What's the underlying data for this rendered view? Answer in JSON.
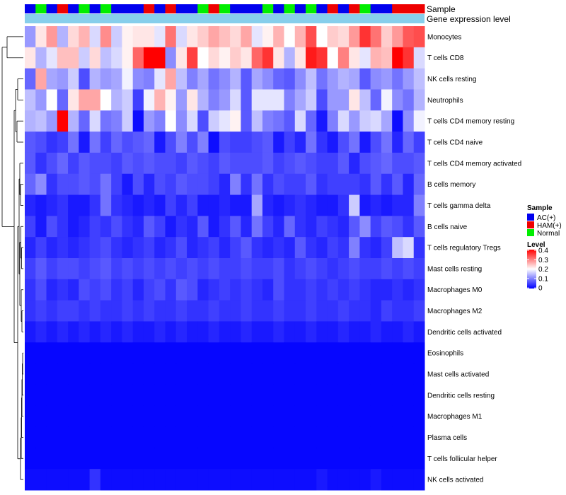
{
  "chart_data": {
    "type": "heatmap",
    "annotation_labels": [
      "Sample",
      "Gene expression level"
    ],
    "rows": [
      "Monocytes",
      "T cells CD8",
      "NK cells resting",
      "Neutrophils",
      "T cells CD4 memory resting",
      "T cells CD4 naive",
      "T cells CD4 memory activated",
      "B cells memory",
      "T cells gamma delta",
      "B cells naive",
      "T cells regulatory  Tregs",
      "Mast cells resting",
      "Macrophages M0",
      "Macrophages M2",
      "Dendritic cells activated",
      "Eosinophils",
      "Mast cells activated",
      "Dendritic cells resting",
      "Macrophages M1",
      "Plasma cells",
      "T cells follicular helper",
      "NK cells activated"
    ],
    "n_columns": 37,
    "sample_groups": [
      "AC(+)",
      "Normal",
      "AC(+)",
      "HAM(+)",
      "AC(+)",
      "Normal",
      "AC(+)",
      "Normal",
      "AC(+)",
      "AC(+)",
      "AC(+)",
      "HAM(+)",
      "AC(+)",
      "HAM(+)",
      "AC(+)",
      "AC(+)",
      "Normal",
      "HAM(+)",
      "Normal",
      "AC(+)",
      "AC(+)",
      "AC(+)",
      "Normal",
      "AC(+)",
      "Normal",
      "AC(+)",
      "Normal",
      "AC(+)",
      "HAM(+)",
      "AC(+)",
      "HAM(+)",
      "Normal",
      "AC(+)",
      "AC(+)",
      "HAM(+)",
      "HAM(+)",
      "HAM(+)"
    ],
    "values": [
      [
        0.12,
        0.22,
        0.28,
        0.14,
        0.23,
        0.26,
        0.17,
        0.29,
        0.16,
        0.21,
        0.22,
        0.22,
        0.18,
        0.31,
        0.17,
        0.22,
        0.24,
        0.27,
        0.25,
        0.23,
        0.27,
        0.18,
        0.21,
        0.26,
        0.2,
        0.26,
        0.34,
        0.2,
        0.24,
        0.23,
        0.28,
        0.36,
        0.31,
        0.24,
        0.28,
        0.33,
        0.34
      ],
      [
        0.22,
        0.14,
        0.18,
        0.25,
        0.25,
        0.16,
        0.23,
        0.15,
        0.17,
        0.21,
        0.32,
        0.4,
        0.4,
        0.11,
        0.22,
        0.35,
        0.2,
        0.23,
        0.21,
        0.24,
        0.22,
        0.32,
        0.36,
        0.22,
        0.14,
        0.22,
        0.38,
        0.36,
        0.2,
        0.3,
        0.22,
        0.18,
        0.26,
        0.25,
        0.4,
        0.36,
        0.17
      ],
      [
        0.08,
        0.27,
        0.13,
        0.12,
        0.16,
        0.06,
        0.14,
        0.12,
        0.13,
        0.19,
        0.11,
        0.1,
        0.18,
        0.27,
        0.15,
        0.1,
        0.13,
        0.09,
        0.11,
        0.14,
        0.07,
        0.13,
        0.11,
        0.08,
        0.07,
        0.11,
        0.15,
        0.09,
        0.12,
        0.14,
        0.13,
        0.07,
        0.11,
        0.12,
        0.09,
        0.12,
        0.15
      ],
      [
        0.15,
        0.12,
        0.2,
        0.08,
        0.22,
        0.27,
        0.27,
        0.2,
        0.14,
        0.16,
        0.05,
        0.19,
        0.26,
        0.21,
        0.12,
        0.22,
        0.14,
        0.1,
        0.12,
        0.17,
        0.07,
        0.18,
        0.18,
        0.18,
        0.1,
        0.13,
        0.16,
        0.06,
        0.12,
        0.12,
        0.22,
        0.15,
        0.08,
        0.19,
        0.11,
        0.09,
        0.14
      ],
      [
        0.14,
        0.15,
        0.12,
        0.4,
        0.14,
        0.08,
        0.17,
        0.09,
        0.1,
        0.16,
        0.01,
        0.12,
        0.1,
        0.2,
        0.11,
        0.17,
        0.06,
        0.16,
        0.18,
        0.21,
        0.07,
        0.15,
        0.1,
        0.09,
        0.07,
        0.17,
        0.08,
        0.02,
        0.1,
        0.17,
        0.12,
        0.16,
        0.17,
        0.13,
        0.01,
        0.11,
        0.19
      ],
      [
        0.07,
        0.06,
        0.04,
        0.05,
        0.09,
        0.02,
        0.09,
        0.05,
        0.08,
        0.06,
        0.07,
        0.08,
        0.02,
        0.06,
        0.1,
        0.06,
        0.1,
        0.01,
        0.06,
        0.05,
        0.05,
        0.06,
        0.07,
        0.02,
        0.05,
        0.03,
        0.09,
        0.04,
        0.02,
        0.06,
        0.09,
        0.02,
        0.06,
        0.09,
        0.03,
        0.08,
        0.05
      ],
      [
        0.07,
        0.04,
        0.06,
        0.08,
        0.05,
        0.07,
        0.06,
        0.06,
        0.05,
        0.07,
        0.06,
        0.07,
        0.06,
        0.06,
        0.05,
        0.07,
        0.06,
        0.05,
        0.07,
        0.06,
        0.06,
        0.06,
        0.07,
        0.05,
        0.06,
        0.07,
        0.06,
        0.05,
        0.05,
        0.07,
        0.03,
        0.06,
        0.07,
        0.08,
        0.06,
        0.06,
        0.07
      ],
      [
        0.08,
        0.11,
        0.04,
        0.06,
        0.06,
        0.07,
        0.06,
        0.09,
        0.05,
        0.02,
        0.06,
        0.03,
        0.06,
        0.05,
        0.07,
        0.06,
        0.06,
        0.05,
        0.03,
        0.1,
        0.04,
        0.09,
        0.04,
        0.06,
        0.05,
        0.05,
        0.07,
        0.04,
        0.05,
        0.05,
        0.05,
        0.04,
        0.07,
        0.04,
        0.07,
        0.03,
        0.08
      ],
      [
        0.03,
        0.02,
        0.03,
        0.04,
        0.02,
        0.02,
        0.04,
        0.09,
        0.04,
        0.03,
        0.02,
        0.03,
        0.02,
        0.05,
        0.03,
        0.05,
        0.02,
        0.02,
        0.03,
        0.02,
        0.02,
        0.13,
        0.03,
        0.02,
        0.03,
        0.04,
        0.03,
        0.02,
        0.02,
        0.04,
        0.16,
        0.02,
        0.03,
        0.02,
        0.03,
        0.03,
        0.1
      ],
      [
        0.05,
        0.02,
        0.06,
        0.04,
        0.02,
        0.03,
        0.05,
        0.04,
        0.06,
        0.04,
        0.03,
        0.07,
        0.05,
        0.02,
        0.04,
        0.03,
        0.07,
        0.02,
        0.04,
        0.07,
        0.03,
        0.09,
        0.05,
        0.03,
        0.08,
        0.04,
        0.03,
        0.05,
        0.04,
        0.03,
        0.07,
        0.11,
        0.05,
        0.07,
        0.06,
        0.04,
        0.07
      ],
      [
        0.03,
        0.05,
        0.03,
        0.04,
        0.03,
        0.04,
        0.05,
        0.06,
        0.04,
        0.03,
        0.04,
        0.05,
        0.03,
        0.04,
        0.06,
        0.03,
        0.04,
        0.05,
        0.03,
        0.05,
        0.07,
        0.04,
        0.03,
        0.04,
        0.03,
        0.07,
        0.04,
        0.03,
        0.05,
        0.04,
        0.1,
        0.04,
        0.03,
        0.05,
        0.15,
        0.17,
        0.04
      ],
      [
        0.05,
        0.07,
        0.05,
        0.06,
        0.06,
        0.05,
        0.06,
        0.07,
        0.05,
        0.06,
        0.05,
        0.06,
        0.05,
        0.06,
        0.05,
        0.06,
        0.05,
        0.06,
        0.05,
        0.05,
        0.06,
        0.05,
        0.05,
        0.06,
        0.04,
        0.05,
        0.06,
        0.05,
        0.04,
        0.05,
        0.06,
        0.05,
        0.05,
        0.06,
        0.05,
        0.06,
        0.05
      ],
      [
        0.04,
        0.06,
        0.03,
        0.04,
        0.03,
        0.06,
        0.05,
        0.06,
        0.04,
        0.05,
        0.03,
        0.05,
        0.06,
        0.04,
        0.07,
        0.06,
        0.03,
        0.04,
        0.05,
        0.04,
        0.05,
        0.04,
        0.03,
        0.06,
        0.04,
        0.04,
        0.05,
        0.04,
        0.05,
        0.04,
        0.05,
        0.04,
        0.03,
        0.03,
        0.04,
        0.03,
        0.04
      ],
      [
        0.04,
        0.05,
        0.04,
        0.05,
        0.05,
        0.04,
        0.05,
        0.04,
        0.04,
        0.05,
        0.04,
        0.05,
        0.04,
        0.04,
        0.05,
        0.04,
        0.04,
        0.05,
        0.04,
        0.04,
        0.05,
        0.04,
        0.04,
        0.05,
        0.04,
        0.04,
        0.05,
        0.04,
        0.04,
        0.05,
        0.04,
        0.04,
        0.03,
        0.05,
        0.04,
        0.04,
        0.05
      ],
      [
        0.02,
        0.03,
        0.02,
        0.03,
        0.02,
        0.03,
        0.02,
        0.03,
        0.02,
        0.03,
        0.02,
        0.02,
        0.03,
        0.02,
        0.03,
        0.02,
        0.02,
        0.03,
        0.02,
        0.02,
        0.03,
        0.02,
        0.02,
        0.03,
        0.02,
        0.02,
        0.03,
        0.02,
        0.02,
        0.03,
        0.02,
        0.02,
        0.03,
        0.02,
        0.02,
        0.03,
        0.02
      ],
      [
        0.005,
        0.005,
        0.005,
        0.005,
        0.005,
        0.005,
        0.005,
        0.005,
        0.005,
        0.005,
        0.005,
        0.005,
        0.005,
        0.005,
        0.005,
        0.005,
        0.005,
        0.005,
        0.005,
        0.005,
        0.005,
        0.005,
        0.005,
        0.005,
        0.005,
        0.005,
        0.005,
        0.005,
        0.005,
        0.005,
        0.005,
        0.005,
        0.005,
        0.005,
        0.005,
        0.005,
        0.005
      ],
      [
        0.005,
        0.005,
        0.005,
        0.005,
        0.005,
        0.005,
        0.005,
        0.005,
        0.005,
        0.005,
        0.005,
        0.005,
        0.005,
        0.005,
        0.005,
        0.005,
        0.005,
        0.005,
        0.005,
        0.005,
        0.005,
        0.005,
        0.005,
        0.005,
        0.005,
        0.005,
        0.005,
        0.005,
        0.005,
        0.005,
        0.005,
        0.005,
        0.005,
        0.005,
        0.005,
        0.005,
        0.005
      ],
      [
        0.005,
        0.005,
        0.005,
        0.005,
        0.005,
        0.005,
        0.005,
        0.005,
        0.005,
        0.005,
        0.005,
        0.005,
        0.005,
        0.005,
        0.005,
        0.005,
        0.005,
        0.005,
        0.005,
        0.005,
        0.005,
        0.005,
        0.005,
        0.005,
        0.005,
        0.005,
        0.005,
        0.005,
        0.005,
        0.005,
        0.005,
        0.005,
        0.005,
        0.005,
        0.005,
        0.005,
        0.005
      ],
      [
        0.005,
        0.005,
        0.005,
        0.005,
        0.005,
        0.005,
        0.005,
        0.005,
        0.005,
        0.005,
        0.005,
        0.005,
        0.005,
        0.005,
        0.005,
        0.005,
        0.005,
        0.005,
        0.005,
        0.005,
        0.005,
        0.005,
        0.005,
        0.005,
        0.005,
        0.005,
        0.005,
        0.005,
        0.005,
        0.005,
        0.005,
        0.005,
        0.005,
        0.005,
        0.005,
        0.005,
        0.005
      ],
      [
        0.005,
        0.005,
        0.005,
        0.005,
        0.005,
        0.005,
        0.005,
        0.005,
        0.005,
        0.005,
        0.005,
        0.005,
        0.005,
        0.005,
        0.005,
        0.005,
        0.005,
        0.005,
        0.005,
        0.005,
        0.005,
        0.005,
        0.005,
        0.005,
        0.005,
        0.005,
        0.005,
        0.005,
        0.005,
        0.005,
        0.005,
        0.005,
        0.005,
        0.005,
        0.005,
        0.005,
        0.005
      ],
      [
        0.005,
        0.005,
        0.005,
        0.005,
        0.005,
        0.005,
        0.005,
        0.005,
        0.005,
        0.005,
        0.005,
        0.005,
        0.005,
        0.005,
        0.005,
        0.005,
        0.005,
        0.005,
        0.005,
        0.005,
        0.005,
        0.005,
        0.005,
        0.005,
        0.005,
        0.005,
        0.005,
        0.005,
        0.005,
        0.005,
        0.005,
        0.005,
        0.005,
        0.005,
        0.005,
        0.005,
        0.005
      ],
      [
        0.01,
        0.01,
        0.01,
        0.01,
        0.01,
        0.01,
        0.04,
        0.01,
        0.01,
        0.01,
        0.01,
        0.01,
        0.01,
        0.01,
        0.01,
        0.01,
        0.01,
        0.01,
        0.01,
        0.01,
        0.01,
        0.01,
        0.01,
        0.01,
        0.01,
        0.01,
        0.01,
        0.02,
        0.01,
        0.01,
        0.01,
        0.01,
        0.02,
        0.01,
        0.01,
        0.01,
        0.01
      ]
    ],
    "sample_legend": {
      "title": "Sample",
      "items": [
        {
          "label": "AC(+)",
          "color": "#0000ee"
        },
        {
          "label": "HAM(+)",
          "color": "#ee0000"
        },
        {
          "label": "Normal",
          "color": "#00ee00"
        }
      ]
    },
    "level_legend": {
      "title": "Level",
      "ticks": [
        "0.4",
        "0.3",
        "0.2",
        "0.1",
        "0"
      ],
      "range": [
        0,
        0.4
      ],
      "colors": {
        "low": "#0000ff",
        "mid": "#ffffff",
        "high": "#ff0000"
      }
    },
    "gene_expression_bar_color": "#87ceeb"
  }
}
